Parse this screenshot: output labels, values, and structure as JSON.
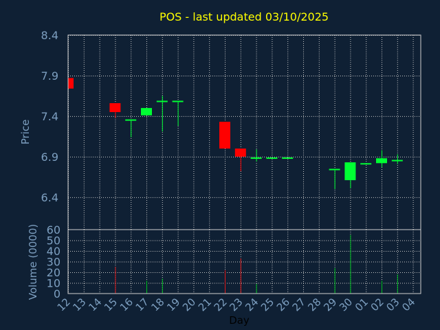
{
  "chart_data": {
    "type": "candlestick",
    "title": "POS - last updated 03/10/2025",
    "xlabel": "Day",
    "price_panel": {
      "ylabel": "Price",
      "ylim": [
        6.0,
        8.4
      ],
      "yticks": [
        "8.4",
        "7.9",
        "7.4",
        "6.9",
        "6.4"
      ],
      "ytick_values": [
        8.4,
        7.9,
        7.4,
        6.9,
        6.4
      ],
      "grid": true
    },
    "volume_panel": {
      "ylabel": "Volume (0000)",
      "ylim": [
        0,
        60
      ],
      "yticks": [
        "60",
        "50",
        "40",
        "30",
        "20",
        "10",
        "0"
      ],
      "ytick_values": [
        60,
        50,
        40,
        30,
        20,
        10,
        0
      ],
      "grid": true
    },
    "x_ticks": [
      "12",
      "13",
      "14",
      "15",
      "16",
      "17",
      "18",
      "19",
      "20",
      "21",
      "22",
      "23",
      "24",
      "25",
      "26",
      "27",
      "28",
      "29",
      "30",
      "01",
      "02",
      "03",
      "04"
    ],
    "candles": [
      {
        "x": "12",
        "open": 7.87,
        "close": 7.74,
        "high": 7.87,
        "low": 7.74,
        "volume": 0
      },
      {
        "x": "15",
        "open": 7.56,
        "close": 7.45,
        "high": 7.56,
        "low": 7.38,
        "volume": 25
      },
      {
        "x": "16",
        "open": 7.36,
        "close": 7.36,
        "high": 7.36,
        "low": 7.14,
        "volume": 0
      },
      {
        "x": "17",
        "open": 7.41,
        "close": 7.5,
        "high": 7.5,
        "low": 7.41,
        "volume": 12
      },
      {
        "x": "18",
        "open": 7.59,
        "close": 7.59,
        "high": 7.65,
        "low": 7.21,
        "volume": 14
      },
      {
        "x": "19",
        "open": 7.59,
        "close": 7.59,
        "high": 7.59,
        "low": 7.28,
        "volume": 0
      },
      {
        "x": "22",
        "open": 7.33,
        "close": 7.0,
        "high": 7.33,
        "low": 7.0,
        "volume": 22
      },
      {
        "x": "23",
        "open": 7.0,
        "close": 6.9,
        "high": 7.0,
        "low": 6.72,
        "volume": 33
      },
      {
        "x": "24",
        "open": 6.89,
        "close": 6.89,
        "high": 6.99,
        "low": 6.84,
        "volume": 9
      },
      {
        "x": "25",
        "open": 6.89,
        "close": 6.89,
        "high": 6.89,
        "low": 6.89,
        "volume": 0
      },
      {
        "x": "26",
        "open": 6.89,
        "close": 6.89,
        "high": 6.89,
        "low": 6.89,
        "volume": 0
      },
      {
        "x": "29",
        "open": 6.75,
        "close": 6.75,
        "high": 6.75,
        "low": 6.5,
        "volume": 24
      },
      {
        "x": "30",
        "open": 6.61,
        "close": 6.83,
        "high": 6.83,
        "low": 6.51,
        "volume": 55
      },
      {
        "x": "01",
        "open": 6.82,
        "close": 6.82,
        "high": 6.82,
        "low": 6.82,
        "volume": 0
      },
      {
        "x": "02",
        "open": 6.82,
        "close": 6.88,
        "high": 6.98,
        "low": 6.77,
        "volume": 12
      },
      {
        "x": "03",
        "open": 6.86,
        "close": 6.86,
        "high": 6.93,
        "low": 6.81,
        "volume": 18
      }
    ],
    "colors": {
      "background": "#0f2034",
      "grid": "#c8c8c8",
      "axis": "#7d9fc0",
      "title": "#ffff00",
      "up": "#00ff33",
      "down": "#ff0000",
      "volume_up": "#00c020",
      "volume_down": "#e01818",
      "frame": "#d0d0d0"
    }
  }
}
